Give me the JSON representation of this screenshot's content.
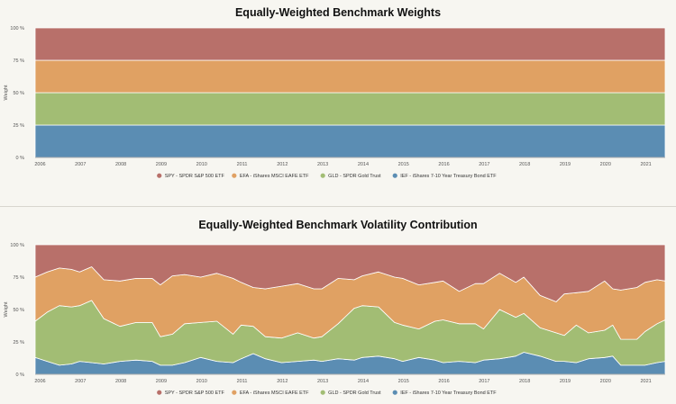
{
  "chart_data": [
    {
      "type": "area",
      "stacked": true,
      "title": "Equally-Weighted Benchmark Weights",
      "ylabel": "Weight",
      "xlabel": "",
      "xlim": [
        2005.9,
        2021.5
      ],
      "ylim": [
        0,
        100
      ],
      "x_ticks": [
        "2006",
        "2007",
        "2008",
        "2009",
        "2010",
        "2011",
        "2012",
        "2013",
        "2014",
        "2015",
        "2016",
        "2017",
        "2018",
        "2019",
        "2020",
        "2021"
      ],
      "y_ticks": [
        "0 %",
        "25 %",
        "50 %",
        "75 %",
        "100 %"
      ],
      "grid": false,
      "legend_position": "bottom",
      "x": [
        2005.9,
        2021.5
      ],
      "series": [
        {
          "name": "IEF - iShares 7-10 Year Treasury Bond ETF",
          "color": "#5b8db3",
          "values": [
            25,
            25
          ]
        },
        {
          "name": "GLD - SPDR Gold Trust",
          "color": "#a2bd74",
          "values": [
            25,
            25
          ]
        },
        {
          "name": "EFA - iShares MSCI EAFE ETF",
          "color": "#e0a163",
          "values": [
            25,
            25
          ]
        },
        {
          "name": "SPY - SPDR S&P 500 ETF",
          "color": "#b8706a",
          "values": [
            25,
            25
          ]
        }
      ]
    },
    {
      "type": "area",
      "stacked": true,
      "title": "Equally-Weighted Benchmark Volatility Contribution",
      "ylabel": "Weight",
      "xlabel": "",
      "xlim": [
        2005.9,
        2021.5
      ],
      "ylim": [
        0,
        100
      ],
      "x_ticks": [
        "2006",
        "2007",
        "2008",
        "2009",
        "2010",
        "2011",
        "2012",
        "2013",
        "2014",
        "2015",
        "2016",
        "2017",
        "2018",
        "2019",
        "2020",
        "2021"
      ],
      "y_ticks": [
        "0 %",
        "25 %",
        "50 %",
        "75 %",
        "100 %"
      ],
      "grid": false,
      "legend_position": "bottom",
      "x": [
        2005.9,
        2006.2,
        2006.5,
        2006.8,
        2007.0,
        2007.3,
        2007.6,
        2008.0,
        2008.4,
        2008.8,
        2009.0,
        2009.3,
        2009.6,
        2010.0,
        2010.4,
        2010.8,
        2011.0,
        2011.3,
        2011.6,
        2012.0,
        2012.4,
        2012.8,
        2013.0,
        2013.4,
        2013.8,
        2014.0,
        2014.4,
        2014.8,
        2015.0,
        2015.4,
        2015.8,
        2016.0,
        2016.4,
        2016.8,
        2017.0,
        2017.4,
        2017.8,
        2018.0,
        2018.4,
        2018.8,
        2019.0,
        2019.3,
        2019.6,
        2020.0,
        2020.2,
        2020.4,
        2020.8,
        2021.0,
        2021.3,
        2021.5
      ],
      "series": [
        {
          "name": "IEF - iShares 7-10 Year Treasury Bond ETF",
          "color": "#5b8db3",
          "values": [
            13,
            10,
            7,
            8,
            10,
            9,
            8,
            10,
            11,
            10,
            7,
            7,
            9,
            13,
            10,
            9,
            12,
            16,
            12,
            9,
            10,
            11,
            10,
            12,
            11,
            13,
            14,
            12,
            10,
            13,
            11,
            9,
            10,
            9,
            11,
            12,
            14,
            17,
            14,
            10,
            10,
            9,
            12,
            13,
            14,
            7,
            7,
            7,
            9,
            10
          ]
        },
        {
          "name": "GLD - SPDR Gold Trust",
          "color": "#a2bd74",
          "values": [
            28,
            38,
            46,
            44,
            43,
            48,
            35,
            27,
            29,
            30,
            22,
            24,
            30,
            27,
            31,
            22,
            26,
            21,
            17,
            19,
            22,
            17,
            19,
            27,
            40,
            40,
            38,
            28,
            28,
            22,
            30,
            33,
            29,
            30,
            24,
            38,
            30,
            30,
            22,
            22,
            20,
            29,
            20,
            21,
            24,
            20,
            20,
            26,
            30,
            32
          ]
        },
        {
          "name": "EFA - iShares MSCI EAFE ETF",
          "color": "#e0a163",
          "values": [
            34,
            31,
            29,
            29,
            26,
            26,
            30,
            35,
            34,
            34,
            40,
            45,
            38,
            35,
            37,
            43,
            33,
            30,
            37,
            40,
            38,
            38,
            37,
            35,
            22,
            23,
            27,
            35,
            36,
            34,
            30,
            30,
            25,
            31,
            35,
            28,
            27,
            28,
            25,
            24,
            32,
            25,
            32,
            38,
            28,
            38,
            40,
            38,
            34,
            30
          ]
        },
        {
          "name": "SPY - SPDR S&P 500 ETF",
          "color": "#b8706a",
          "values": [
            25,
            21,
            18,
            19,
            21,
            17,
            27,
            28,
            26,
            26,
            31,
            24,
            23,
            25,
            22,
            26,
            29,
            33,
            34,
            32,
            30,
            34,
            34,
            26,
            27,
            24,
            21,
            25,
            26,
            31,
            29,
            28,
            36,
            30,
            30,
            22,
            29,
            25,
            39,
            44,
            38,
            37,
            36,
            28,
            34,
            35,
            33,
            29,
            27,
            28
          ]
        }
      ]
    }
  ]
}
